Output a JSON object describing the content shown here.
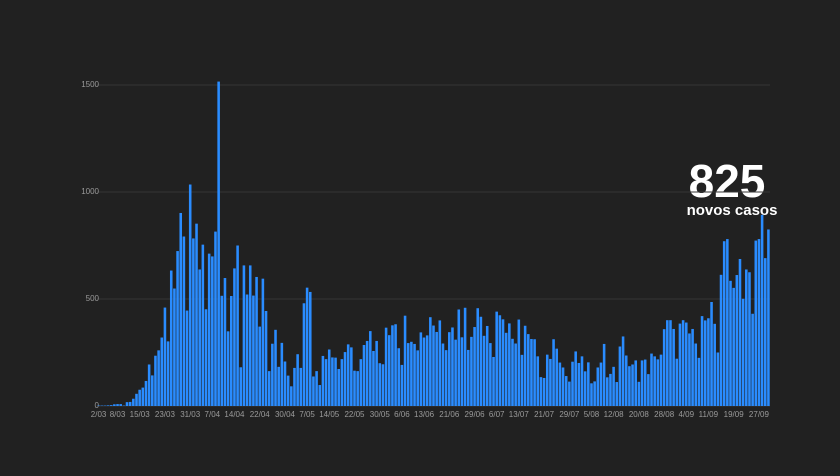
{
  "chart_data": {
    "type": "bar",
    "color": "#2a8cff",
    "grid": true,
    "annotation": "novos casos",
    "ylim": [
      0,
      1500
    ],
    "yticks": [
      0,
      500,
      1000,
      1500
    ],
    "categories": [
      "2/03",
      null,
      null,
      null,
      null,
      null,
      "8/03",
      null,
      null,
      null,
      null,
      null,
      null,
      "15/03",
      null,
      null,
      null,
      null,
      null,
      null,
      null,
      "23/03",
      null,
      null,
      null,
      null,
      null,
      null,
      null,
      "31/03",
      null,
      null,
      null,
      null,
      null,
      null,
      "7/04",
      null,
      null,
      null,
      null,
      null,
      null,
      "14/04",
      null,
      null,
      null,
      null,
      null,
      null,
      null,
      "22/04",
      null,
      null,
      null,
      null,
      null,
      null,
      null,
      "30/04",
      null,
      null,
      null,
      null,
      null,
      null,
      "7/05",
      null,
      null,
      null,
      null,
      null,
      null,
      "14/05",
      null,
      null,
      null,
      null,
      null,
      null,
      null,
      "22/05",
      null,
      null,
      null,
      null,
      null,
      null,
      null,
      "30/05",
      null,
      null,
      null,
      null,
      null,
      null,
      "6/06",
      null,
      null,
      null,
      null,
      null,
      null,
      "13/06",
      null,
      null,
      null,
      null,
      null,
      null,
      null,
      "21/06",
      null,
      null,
      null,
      null,
      null,
      null,
      null,
      "29/06",
      null,
      null,
      null,
      null,
      null,
      null,
      "6/07",
      null,
      null,
      null,
      null,
      null,
      null,
      "13/07",
      null,
      null,
      null,
      null,
      null,
      null,
      null,
      "21/07",
      null,
      null,
      null,
      null,
      null,
      null,
      null,
      "29/07",
      null,
      null,
      null,
      null,
      null,
      null,
      "5/08",
      null,
      null,
      null,
      null,
      null,
      null,
      "12/08",
      null,
      null,
      null,
      null,
      null,
      null,
      null,
      "20/08",
      null,
      null,
      null,
      null,
      null,
      null,
      null,
      "28/08",
      null,
      null,
      null,
      null,
      null,
      null,
      "4/09",
      null,
      null,
      null,
      null,
      null,
      null,
      "11/09",
      null,
      null,
      null,
      null,
      null,
      null,
      null,
      "19/09",
      null,
      null,
      null,
      null,
      null,
      null,
      null,
      "27/09",
      null,
      null,
      null
    ],
    "values": [
      2,
      2,
      2,
      3,
      4,
      8,
      9,
      9,
      2,
      18,
      19,
      34,
      57,
      76,
      86,
      117,
      194,
      143,
      235,
      260,
      320,
      460,
      302,
      633,
      549,
      724,
      902,
      792,
      446,
      1035,
      783,
      852,
      638,
      754,
      452,
      712,
      699,
      815,
      1516,
      515,
      598,
      349,
      514,
      643,
      750,
      181,
      657,
      521,
      657,
      516,
      603,
      371,
      595,
      444,
      163,
      291,
      356,
      183,
      295,
      208,
      142,
      92,
      178,
      242,
      178,
      480,
      553,
      533,
      138,
      163,
      98,
      234,
      219,
      264,
      227,
      226,
      173,
      219,
      252,
      288,
      274,
      165,
      163,
      219,
      285,
      304,
      350,
      257,
      304,
      200,
      195,
      366,
      331,
      377,
      382,
      270,
      192,
      422,
      294,
      300,
      290,
      260,
      344,
      320,
      330,
      415,
      376,
      346,
      400,
      292,
      261,
      345,
      367,
      310,
      451,
      321,
      459,
      262,
      323,
      369,
      457,
      417,
      328,
      374,
      294,
      229,
      441,
      424,
      405,
      342,
      386,
      314,
      292,
      404,
      239,
      375,
      336,
      313,
      312,
      232,
      135,
      131,
      240,
      220,
      312,
      268,
      203,
      180,
      140,
      114,
      207,
      255,
      201,
      232,
      162,
      204,
      106,
      115,
      180,
      203,
      290,
      134,
      150,
      183,
      112,
      278,
      325,
      236,
      186,
      194,
      213,
      113,
      213,
      217,
      149,
      245,
      232,
      218,
      240,
      359,
      401,
      401,
      360,
      221,
      385,
      401,
      390,
      339,
      360,
      292,
      225,
      420,
      400,
      410,
      486,
      384,
      250,
      613,
      770,
      780,
      585,
      552,
      612,
      687,
      501,
      638,
      625,
      431,
      773,
      780,
      893,
      691,
      825
    ]
  }
}
